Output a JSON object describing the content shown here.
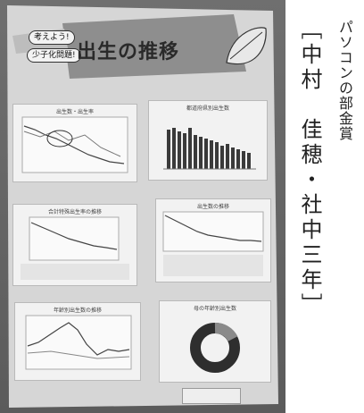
{
  "poster": {
    "title": "出生の推移",
    "bubble1": "考えよう!",
    "bubble2": "少子化問題!",
    "charts": [
      {
        "title": "出生数・出生率"
      },
      {
        "title": "都道府県別出生数"
      },
      {
        "title": "合計特殊出生率の推移"
      },
      {
        "title": "出生数の推移"
      },
      {
        "title": "年齢別出生数の推移"
      },
      {
        "title": "母の年齢別出生数"
      }
    ]
  },
  "caption": {
    "award": "パソコンの部金賞",
    "author": "［中村　佳穂・社中三年］"
  }
}
